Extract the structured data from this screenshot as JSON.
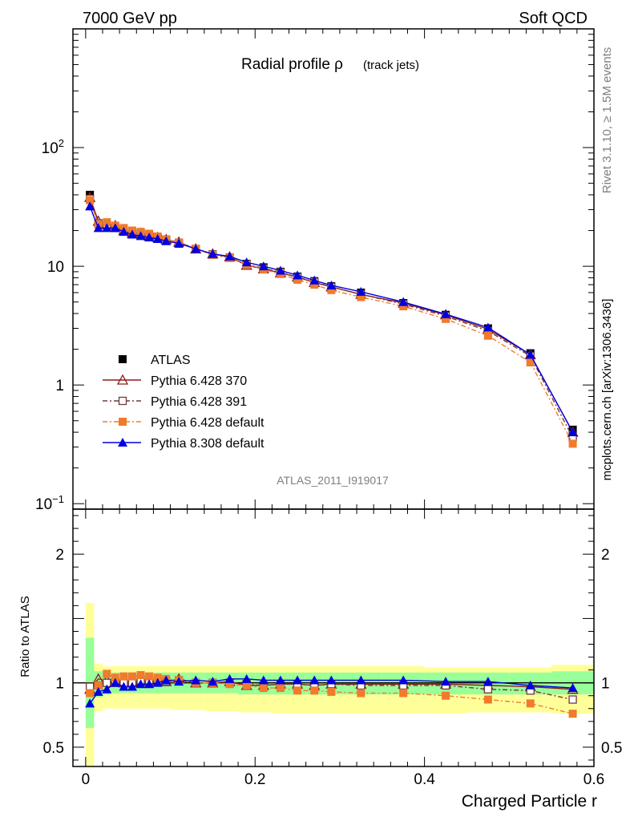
{
  "header": {
    "left": "7000 GeV pp",
    "right": "Soft QCD"
  },
  "side": {
    "rivet": "Rivet 3.1.10, ≥ 1.5M events",
    "mcplots": "mcplots.cern.ch [arXiv:1306.3436]"
  },
  "chart_data": [
    {
      "type": "line",
      "title_main": "Radial profile ρ",
      "title_sub": "(track jets)",
      "analysis_label": "ATLAS_2011_I919017",
      "yscale": "log",
      "ylim": [
        0.09,
        1000
      ],
      "xlim": [
        -0.015,
        0.6
      ],
      "x_ticks": [
        "0",
        "0.2",
        "0.4",
        "0.6"
      ],
      "y_ticks": [
        {
          "value": 0.1,
          "base": "10",
          "exp": "−1"
        },
        {
          "value": 1,
          "label": "1"
        },
        {
          "value": 10,
          "label": "10"
        },
        {
          "value": 100,
          "base": "10",
          "exp": "2"
        }
      ],
      "legend_position": "lower-left",
      "x": [
        0.005,
        0.015,
        0.025,
        0.035,
        0.045,
        0.055,
        0.065,
        0.075,
        0.085,
        0.095,
        0.11,
        0.13,
        0.15,
        0.17,
        0.19,
        0.21,
        0.23,
        0.25,
        0.27,
        0.29,
        0.325,
        0.375,
        0.425,
        0.475,
        0.525,
        0.575
      ],
      "series": [
        {
          "name": "ATLAS",
          "color": "#000000",
          "marker": "square-filled",
          "dash": "none",
          "values": [
            40,
            23,
            22,
            21,
            20,
            19,
            18.5,
            18,
            17,
            16.5,
            15.5,
            14,
            12.5,
            11.8,
            10.5,
            9.8,
            9,
            8.2,
            7.5,
            6.8,
            6,
            4.9,
            3.9,
            3,
            1.85,
            0.42
          ]
        },
        {
          "name": "Pythia 6.428 370",
          "color": "#8b1a1a",
          "marker": "triangle-open",
          "dash": "none",
          "values": [
            38,
            24,
            22.5,
            22,
            20,
            19,
            19,
            18,
            17.5,
            16.8,
            16,
            14,
            12.7,
            12,
            10.2,
            9.5,
            8.8,
            8.1,
            7.3,
            6.7,
            5.8,
            4.9,
            3.9,
            2.95,
            1.8,
            0.4
          ]
        },
        {
          "name": "Pythia 6.428 391",
          "color": "#6e3b3b",
          "marker": "square-open",
          "dash": "6,3,2,3",
          "values": [
            37,
            23,
            22,
            21,
            20,
            19,
            19,
            18,
            17.5,
            16.8,
            15.8,
            14,
            12.6,
            11.8,
            10.4,
            9.6,
            8.9,
            8.1,
            7.4,
            6.7,
            5.8,
            4.8,
            3.8,
            2.85,
            1.75,
            0.36
          ]
        },
        {
          "name": "Pythia 6.428 default",
          "color": "#f07b2c",
          "marker": "square-filled",
          "dash": "6,3,2,3",
          "values": [
            36,
            22.5,
            23.5,
            22,
            21,
            20,
            19.5,
            18.8,
            17.8,
            16.8,
            15.8,
            14,
            12.5,
            11.7,
            10.3,
            9.4,
            8.6,
            7.7,
            7,
            6.3,
            5.5,
            4.6,
            3.6,
            2.6,
            1.55,
            0.32
          ]
        },
        {
          "name": "Pythia 8.308 default",
          "color": "#0000e0",
          "marker": "triangle-filled",
          "dash": "none",
          "values": [
            32,
            21,
            21,
            21,
            19.5,
            18.5,
            18,
            17.5,
            17,
            16.3,
            15.6,
            14,
            12.7,
            12.1,
            10.8,
            10,
            9.2,
            8.4,
            7.6,
            6.9,
            6.1,
            5,
            3.95,
            3.05,
            1.8,
            0.4
          ]
        }
      ]
    },
    {
      "type": "line",
      "ylabel": "Ratio to ATLAS",
      "xlabel": "Charged Particle r",
      "ylim": [
        0.35,
        2.35
      ],
      "xlim": [
        -0.015,
        0.6
      ],
      "x_ticks": [
        "0",
        "0.2",
        "0.4",
        "0.6"
      ],
      "y_ticks": [
        "0.5",
        "1",
        "2"
      ],
      "band_inner_color": "#99ff99",
      "band_outer_color": "#ffff99",
      "bands": {
        "x_edges": [
          0,
          0.01,
          0.02,
          0.03,
          0.04,
          0.05,
          0.06,
          0.07,
          0.08,
          0.09,
          0.1,
          0.12,
          0.14,
          0.16,
          0.18,
          0.2,
          0.22,
          0.24,
          0.26,
          0.28,
          0.3,
          0.35,
          0.4,
          0.45,
          0.5,
          0.55,
          0.6
        ],
        "inner_lo": [
          0.65,
          0.89,
          0.91,
          0.92,
          0.92,
          0.92,
          0.92,
          0.92,
          0.92,
          0.92,
          0.92,
          0.92,
          0.92,
          0.92,
          0.91,
          0.91,
          0.91,
          0.91,
          0.91,
          0.91,
          0.91,
          0.91,
          0.91,
          0.91,
          0.91,
          0.91
        ],
        "inner_hi": [
          1.35,
          1.09,
          1.08,
          1.08,
          1.08,
          1.08,
          1.08,
          1.08,
          1.08,
          1.08,
          1.08,
          1.08,
          1.08,
          1.08,
          1.08,
          1.08,
          1.08,
          1.08,
          1.08,
          1.08,
          1.08,
          1.08,
          1.08,
          1.08,
          1.08,
          1.09
        ],
        "outer_lo": [
          0.35,
          0.78,
          0.8,
          0.8,
          0.8,
          0.8,
          0.8,
          0.8,
          0.8,
          0.8,
          0.79,
          0.79,
          0.78,
          0.78,
          0.77,
          0.77,
          0.76,
          0.76,
          0.76,
          0.76,
          0.76,
          0.76,
          0.76,
          0.77,
          0.77,
          0.76
        ],
        "outer_hi": [
          1.62,
          1.15,
          1.13,
          1.13,
          1.13,
          1.13,
          1.13,
          1.13,
          1.13,
          1.13,
          1.13,
          1.13,
          1.13,
          1.13,
          1.13,
          1.13,
          1.13,
          1.13,
          1.13,
          1.13,
          1.13,
          1.13,
          1.12,
          1.12,
          1.12,
          1.14
        ]
      },
      "x": [
        0.005,
        0.015,
        0.025,
        0.035,
        0.045,
        0.055,
        0.065,
        0.075,
        0.085,
        0.095,
        0.11,
        0.13,
        0.15,
        0.17,
        0.19,
        0.21,
        0.23,
        0.25,
        0.27,
        0.29,
        0.325,
        0.375,
        0.425,
        0.475,
        0.525,
        0.575
      ],
      "series": [
        {
          "name": "Pythia 6.428 370",
          "color": "#8b1a1a",
          "marker": "triangle-open",
          "dash": "none",
          "values": [
            0.95,
            1.03,
            1.02,
            1.03,
            1.0,
            1.0,
            1.02,
            1.01,
            1.02,
            1.01,
            1.03,
            1.0,
            1.0,
            1.01,
            0.98,
            0.98,
            0.99,
            0.99,
            0.98,
            0.99,
            0.99,
            0.99,
            0.99,
            0.98,
            0.97,
            0.95
          ]
        },
        {
          "name": "Pythia 6.428 391",
          "color": "#6e3b3b",
          "marker": "square-open",
          "dash": "6,3,2,3",
          "values": [
            0.97,
            0.98,
            1.0,
            1.0,
            1.0,
            1.0,
            1.02,
            1.0,
            1.02,
            1.01,
            1.02,
            1.0,
            1.0,
            1.0,
            0.99,
            0.98,
            0.99,
            0.99,
            0.98,
            0.99,
            0.98,
            0.98,
            0.98,
            0.95,
            0.94,
            0.87
          ]
        },
        {
          "name": "Pythia 6.428 default",
          "color": "#f07b2c",
          "marker": "square-filled",
          "dash": "6,3,2,3",
          "values": [
            0.92,
            0.98,
            1.07,
            1.04,
            1.05,
            1.05,
            1.06,
            1.05,
            1.04,
            1.03,
            1.02,
            1.0,
            1.0,
            0.99,
            0.98,
            0.96,
            0.96,
            0.94,
            0.94,
            0.93,
            0.92,
            0.92,
            0.9,
            0.87,
            0.84,
            0.76
          ]
        },
        {
          "name": "Pythia 8.308 default",
          "color": "#0000e0",
          "marker": "triangle-filled",
          "dash": "none",
          "values": [
            0.84,
            0.93,
            0.95,
            1.0,
            0.97,
            0.97,
            0.99,
            0.99,
            1.0,
            1.02,
            1.01,
            1.02,
            1.01,
            1.03,
            1.03,
            1.02,
            1.02,
            1.02,
            1.02,
            1.02,
            1.02,
            1.02,
            1.01,
            1.01,
            0.98,
            0.96
          ]
        }
      ]
    }
  ]
}
